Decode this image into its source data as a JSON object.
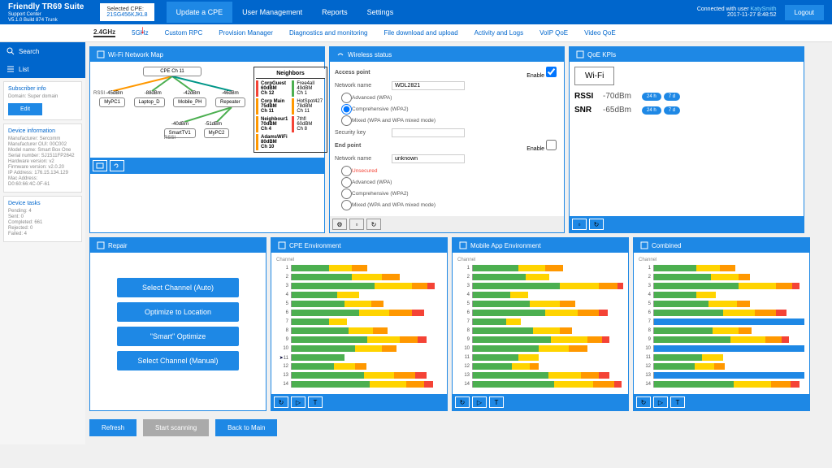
{
  "brand": {
    "title": "Friendly TR69 Suite",
    "sub1": "Support Center",
    "sub2": "V5.1.0 Build 874 Trunk"
  },
  "selectedCpe": {
    "label": "Selected CPE:",
    "value": "21SG456KJKL8"
  },
  "tabs": [
    "Update a CPE",
    "User Management",
    "Reports",
    "Settings"
  ],
  "userInfo": {
    "connected": "Connected with user",
    "name": "KatySmith",
    "time": "2017-11-27 8:48:52",
    "logout": "Logout"
  },
  "subnav": [
    "2.4GHz",
    "5GHz",
    "Custom RPC",
    "Provision Manager",
    "Diagnostics and monitoring",
    "File download and upload",
    "Activity and Logs",
    "VoIP QoE",
    "Video QoE"
  ],
  "sideButtons": {
    "search": "Search",
    "list": "List"
  },
  "subscriber": {
    "title": "Subscriber info",
    "domain": "Domain: Super domain",
    "edit": "Edit"
  },
  "device": {
    "title": "Device information",
    "rows": [
      "Manufacturer: Sercomm",
      "Manufacturer OUI: 00C002",
      "Model name: Smart Box One",
      "Serial number: SJ1511FP2642",
      "Hardware version: v2",
      "Firmware version: v2.0.20",
      "IP Address: 176.15.134.129",
      "Mac Address:",
      "D0:60:66:4C-0F-61"
    ]
  },
  "tasks": {
    "title": "Device tasks",
    "rows": [
      "Pending: 4",
      "Sent: 0",
      "Completed: 661",
      "Rejected: 0",
      "Failed: 4"
    ]
  },
  "panels": {
    "wifimap": {
      "title": "Wi-Fi Network Map",
      "cpe": "CPE Ch 11",
      "rssi": "RSSI",
      "neighbors": "Neighbors",
      "lvl1": [
        "-45dBm",
        "-88dBm",
        "-42dBm",
        "-46dBm"
      ],
      "nodes1": [
        "MyPC1",
        "Laptop_D",
        "Mobile_PH",
        "Repeater"
      ],
      "lvl2": [
        "-40dBm",
        "-51dBm"
      ],
      "nodes2": [
        "SmartTV1",
        "MyPC2"
      ],
      "neighborList": [
        {
          "n": "CorpGuest",
          "d": "60dBM",
          "c": "Ch 12",
          "col": "#f44336"
        },
        {
          "n": "Corp Main",
          "d": "75dBM",
          "c": "Ch 11",
          "col": "#ff9800"
        },
        {
          "n": "Neighbour1",
          "d": "70dBM",
          "c": "Ch 4",
          "col": "#ff9800"
        },
        {
          "n": "AdamsWiFi",
          "d": "80dBM",
          "c": "Ch 10",
          "col": "#ff9800"
        }
      ],
      "neighborList2": [
        {
          "n": "Free4all",
          "d": "49dBM",
          "c": "Ch 1",
          "col": "#4caf50"
        },
        {
          "n": "HotSpot427",
          "d": "78dBM",
          "c": "Ch 11",
          "col": "#ff9800"
        },
        {
          "n": "7thfl",
          "d": "60dBM",
          "c": "Ch 8",
          "col": "#f44336"
        }
      ]
    },
    "wireless": {
      "title": "Wireless status",
      "ap": "Access point",
      "enable": "Enable",
      "netname": "Network name",
      "netval": "WDL2821",
      "opts": [
        "Advanced (WPA)",
        "Comprehensive (WPA2)",
        "Mixed (WPA and WPA mixed mode)"
      ],
      "seckey": "Security key",
      "endpoint": "End point",
      "epval": "unknown",
      "unsecured": "Unsecured"
    },
    "qoe": {
      "title": "QoE KPIs",
      "wifi": "Wi-Fi",
      "rssi": "RSSI",
      "rssival": "-70dBm",
      "snr": "SNR",
      "snrval": "-65dBm",
      "t1": "24 h",
      "t2": "7 d"
    },
    "repair": {
      "title": "Repair",
      "btns": [
        "Select Channel (Auto)",
        "Optimize to Location",
        "\"Smart\" Optimize",
        "Select Channel (Manual)"
      ]
    },
    "env1": {
      "title": "CPE Environment",
      "chlabel": "Channel"
    },
    "env2": {
      "title": "Mobile App Environment",
      "chlabel": "Channel"
    },
    "env3": {
      "title": "Combined",
      "chlabel": "Channel"
    }
  },
  "channels": {
    "cpe": [
      [
        [
          "g",
          25
        ],
        [
          "y",
          15
        ],
        [
          "o",
          10
        ]
      ],
      [
        [
          "g",
          40
        ],
        [
          "y",
          20
        ],
        [
          "o",
          12
        ]
      ],
      [
        [
          "g",
          55
        ],
        [
          "y",
          25
        ],
        [
          "o",
          10
        ],
        [
          "r",
          5
        ]
      ],
      [
        [
          "g",
          30
        ],
        [
          "y",
          15
        ]
      ],
      [
        [
          "g",
          35
        ],
        [
          "y",
          18
        ],
        [
          "o",
          8
        ]
      ],
      [
        [
          "g",
          45
        ],
        [
          "y",
          20
        ],
        [
          "o",
          15
        ],
        [
          "r",
          8
        ]
      ],
      [
        [
          "g",
          25
        ],
        [
          "y",
          12
        ]
      ],
      [
        [
          "g",
          38
        ],
        [
          "y",
          16
        ],
        [
          "o",
          10
        ]
      ],
      [
        [
          "g",
          50
        ],
        [
          "y",
          22
        ],
        [
          "o",
          12
        ],
        [
          "r",
          6
        ]
      ],
      [
        [
          "g",
          42
        ],
        [
          "y",
          18
        ],
        [
          "o",
          10
        ]
      ],
      [
        [
          "g",
          35
        ]
      ],
      [
        [
          "g",
          28
        ],
        [
          "y",
          14
        ],
        [
          "o",
          8
        ]
      ],
      [
        [
          "g",
          48
        ],
        [
          "y",
          20
        ],
        [
          "o",
          14
        ],
        [
          "r",
          8
        ]
      ],
      [
        [
          "g",
          52
        ],
        [
          "y",
          24
        ],
        [
          "o",
          12
        ],
        [
          "r",
          6
        ]
      ]
    ],
    "mobile": [
      [
        [
          "g",
          30
        ],
        [
          "y",
          18
        ],
        [
          "o",
          12
        ]
      ],
      [
        [
          "g",
          35
        ],
        [
          "y",
          16
        ]
      ],
      [
        [
          "g",
          58
        ],
        [
          "y",
          26
        ],
        [
          "o",
          12
        ],
        [
          "r",
          4
        ]
      ],
      [
        [
          "g",
          25
        ],
        [
          "y",
          12
        ]
      ],
      [
        [
          "g",
          38
        ],
        [
          "y",
          20
        ],
        [
          "o",
          10
        ]
      ],
      [
        [
          "g",
          48
        ],
        [
          "y",
          22
        ],
        [
          "o",
          14
        ],
        [
          "r",
          6
        ]
      ],
      [
        [
          "g",
          22
        ],
        [
          "y",
          10
        ]
      ],
      [
        [
          "g",
          40
        ],
        [
          "y",
          18
        ],
        [
          "o",
          8
        ]
      ],
      [
        [
          "g",
          52
        ],
        [
          "y",
          24
        ],
        [
          "o",
          10
        ],
        [
          "r",
          5
        ]
      ],
      [
        [
          "g",
          44
        ],
        [
          "y",
          20
        ],
        [
          "o",
          12
        ]
      ],
      [
        [
          "g",
          30
        ],
        [
          "y",
          14
        ]
      ],
      [
        [
          "g",
          26
        ],
        [
          "y",
          12
        ],
        [
          "o",
          6
        ]
      ],
      [
        [
          "g",
          50
        ],
        [
          "y",
          22
        ],
        [
          "o",
          12
        ],
        [
          "r",
          7
        ]
      ],
      [
        [
          "g",
          54
        ],
        [
          "y",
          26
        ],
        [
          "o",
          14
        ],
        [
          "r",
          5
        ]
      ]
    ],
    "combined": [
      [
        [
          "g",
          28
        ],
        [
          "y",
          16
        ],
        [
          "o",
          10
        ]
      ],
      [
        [
          "g",
          38
        ],
        [
          "y",
          18
        ],
        [
          "o",
          8
        ]
      ],
      [
        [
          "g",
          56
        ],
        [
          "y",
          25
        ],
        [
          "o",
          11
        ],
        [
          "r",
          5
        ]
      ],
      [
        [
          "g",
          28
        ],
        [
          "y",
          13
        ]
      ],
      [
        [
          "g",
          36
        ],
        [
          "y",
          19
        ],
        [
          "o",
          9
        ]
      ],
      [
        [
          "g",
          46
        ],
        [
          "y",
          21
        ],
        [
          "o",
          14
        ],
        [
          "r",
          7
        ]
      ],
      [
        [
          "b",
          100
        ]
      ],
      [
        [
          "g",
          39
        ],
        [
          "y",
          17
        ],
        [
          "o",
          9
        ]
      ],
      [
        [
          "g",
          51
        ],
        [
          "y",
          23
        ],
        [
          "o",
          11
        ],
        [
          "r",
          5
        ]
      ],
      [
        [
          "b",
          100
        ]
      ],
      [
        [
          "g",
          32
        ],
        [
          "y",
          14
        ]
      ],
      [
        [
          "g",
          27
        ],
        [
          "y",
          13
        ],
        [
          "o",
          7
        ]
      ],
      [
        [
          "b",
          100
        ]
      ],
      [
        [
          "g",
          53
        ],
        [
          "y",
          25
        ],
        [
          "o",
          13
        ],
        [
          "r",
          6
        ]
      ]
    ]
  },
  "footer": {
    "refresh": "Refresh",
    "scan": "Start scanning",
    "back": "Back to Main"
  }
}
